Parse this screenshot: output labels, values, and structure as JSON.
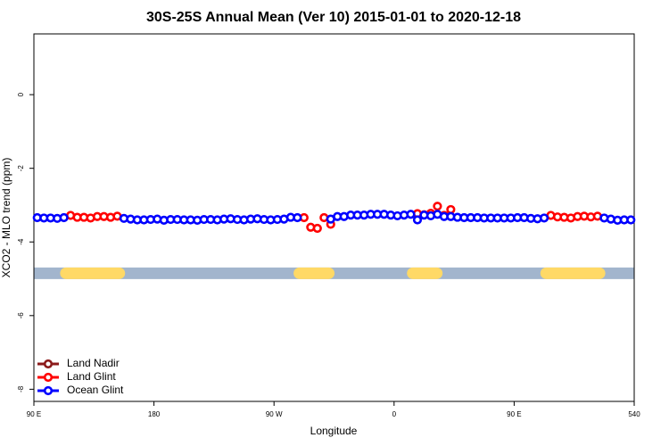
{
  "chart_data": {
    "type": "scatter",
    "title": "30S-25S Annual Mean (Ver 10)   2015-01-01 to 2020-12-18",
    "x_label": "Longitude",
    "y_label": "XCO2 - MLO trend (ppm)",
    "xlim": [
      90,
      540
    ],
    "ylim": [
      -8.33,
      1.65
    ],
    "xticks": [
      {
        "value": 90,
        "label": "90 E"
      },
      180,
      {
        "value": 270,
        "label": "90 W"
      },
      {
        "value": 360,
        "label": "0"
      },
      {
        "value": 450,
        "label": "90 E"
      },
      540
    ],
    "yticks": [
      0,
      -2,
      -4,
      -6,
      -8
    ],
    "legend": "bottom-left",
    "x": [
      92.5,
      97.5,
      102.5,
      107.5,
      112.5,
      117.5,
      122.5,
      127.5,
      132.5,
      137.5,
      142.5,
      147.5,
      152.5,
      157.5,
      162.5,
      167.5,
      172.5,
      177.5,
      182.5,
      187.5,
      192.5,
      197.5,
      202.5,
      207.5,
      212.5,
      217.5,
      222.5,
      227.5,
      232.5,
      237.5,
      242.5,
      247.5,
      252.5,
      257.5,
      262.5,
      267.5,
      272.5,
      277.5,
      282.5,
      287.5,
      292.5,
      297.5,
      302.5,
      307.5,
      312.5,
      317.5,
      322.5,
      327.5,
      332.5,
      337.5,
      342.5,
      347.5,
      352.5,
      357.5,
      362.5,
      367.5,
      372.5,
      377.5,
      382.5,
      387.5,
      392.5,
      397.5,
      402.5,
      407.5,
      412.5,
      417.5,
      422.5,
      427.5,
      432.5,
      437.5,
      442.5,
      447.5,
      452.5,
      457.5,
      462.5,
      467.5,
      472.5,
      477.5,
      482.5,
      487.5,
      492.5,
      497.5,
      502.5,
      507.5,
      512.5,
      517.5,
      522.5,
      527.5,
      532.5,
      537.5
    ],
    "series": [
      {
        "name": "Land Nadir",
        "color": "#8b1a1a",
        "values": [
          null,
          null,
          null,
          null,
          null,
          null,
          null,
          null,
          null,
          null,
          null,
          null,
          null,
          null,
          null,
          null,
          null,
          null,
          null,
          null,
          null,
          null,
          null,
          null,
          null,
          null,
          null,
          null,
          null,
          null,
          null,
          null,
          null,
          null,
          null,
          null,
          null,
          null,
          null,
          null,
          null,
          null,
          null,
          null,
          null,
          null,
          null,
          null,
          null,
          null,
          null,
          null,
          null,
          null,
          null,
          null,
          null,
          null,
          null,
          null,
          null,
          null,
          null,
          null,
          null,
          null,
          null,
          null,
          null,
          null,
          null,
          null,
          null,
          null,
          null,
          null,
          null,
          null,
          null,
          null,
          null,
          null,
          null,
          null,
          null,
          null,
          null,
          null,
          null,
          null
        ]
      },
      {
        "name": "Land Glint",
        "color": "#ff0000",
        "values": [
          null,
          null,
          null,
          null,
          null,
          -3.28,
          -3.33,
          -3.33,
          -3.35,
          -3.31,
          -3.31,
          -3.33,
          -3.3,
          null,
          null,
          null,
          null,
          null,
          null,
          null,
          null,
          null,
          null,
          null,
          null,
          null,
          null,
          null,
          null,
          null,
          null,
          null,
          null,
          null,
          null,
          null,
          null,
          null,
          null,
          null,
          -3.34,
          -3.6,
          -3.63,
          -3.34,
          -3.52,
          null,
          null,
          null,
          null,
          null,
          null,
          null,
          null,
          null,
          null,
          null,
          null,
          -3.23,
          -3.26,
          -3.22,
          -3.03,
          -3.28,
          -3.12,
          null,
          null,
          null,
          null,
          null,
          null,
          null,
          null,
          null,
          null,
          null,
          null,
          null,
          null,
          -3.28,
          -3.32,
          -3.33,
          -3.35,
          -3.31,
          -3.3,
          -3.32,
          -3.3,
          null,
          null,
          null,
          null,
          null
        ]
      },
      {
        "name": "Ocean Glint",
        "color": "#0000ff",
        "values": [
          -3.34,
          -3.35,
          -3.35,
          -3.36,
          -3.34,
          null,
          null,
          null,
          null,
          null,
          null,
          null,
          null,
          -3.36,
          -3.38,
          -3.4,
          -3.4,
          -3.39,
          -3.38,
          -3.41,
          -3.39,
          -3.39,
          -3.4,
          -3.4,
          -3.41,
          -3.39,
          -3.39,
          -3.4,
          -3.38,
          -3.37,
          -3.39,
          -3.4,
          -3.38,
          -3.37,
          -3.39,
          -3.4,
          -3.39,
          -3.38,
          -3.33,
          -3.34,
          null,
          null,
          null,
          null,
          -3.38,
          -3.31,
          -3.31,
          -3.27,
          -3.27,
          -3.27,
          -3.25,
          -3.25,
          -3.25,
          -3.27,
          -3.29,
          -3.27,
          -3.25,
          -3.4,
          -3.27,
          -3.29,
          -3.25,
          -3.31,
          -3.31,
          -3.33,
          -3.34,
          -3.34,
          -3.34,
          -3.35,
          -3.35,
          -3.35,
          -3.35,
          -3.35,
          -3.34,
          -3.34,
          -3.36,
          -3.37,
          -3.35,
          null,
          null,
          null,
          null,
          null,
          null,
          null,
          null,
          -3.35,
          -3.38,
          -3.41,
          -3.4,
          -3.4
        ]
      }
    ],
    "surface_band": {
      "value": -4.85,
      "ocean_color": "#a2b5cd",
      "land_color": "#ffd966",
      "land": [
        [
          114,
          154
        ],
        [
          289,
          311
        ],
        [
          374,
          392
        ],
        [
          474,
          514
        ]
      ]
    }
  }
}
